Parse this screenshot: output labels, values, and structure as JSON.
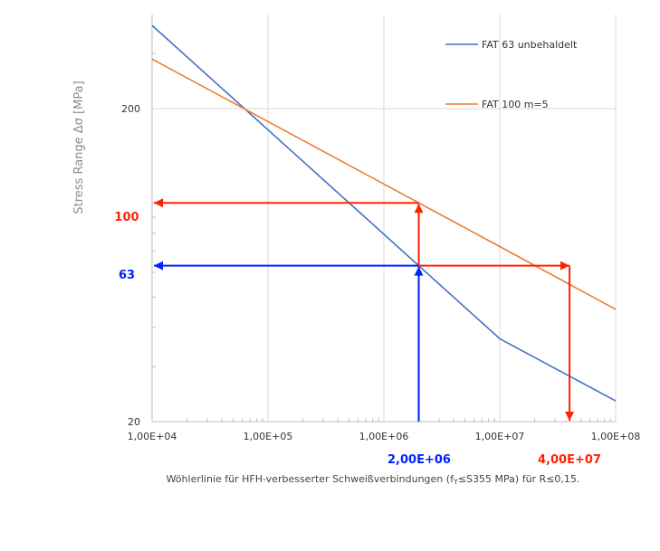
{
  "chart_data": {
    "type": "line",
    "x_scale": "log",
    "y_scale": "log",
    "xlim": [
      10000,
      100000000
    ],
    "ylim": [
      20,
      400
    ],
    "x_ticks": [
      10000,
      100000,
      1000000,
      10000000,
      100000000
    ],
    "x_tick_labels": [
      "1,00E+04",
      "1,00E+05",
      "1,00E+06",
      "1,00E+07",
      "1,00E+08"
    ],
    "y_ticks": [
      20,
      200
    ],
    "y_tick_labels": [
      "20",
      "200"
    ],
    "ylabel": "Stress Range Δσ [MPa]",
    "xlabel": "",
    "grid": "vertical at decades, horizontal at labeled y ticks",
    "legend_position": "top-right",
    "series": [
      {
        "name": "FAT 63 unbehaldelt",
        "color": "#4472C4",
        "x": [
          10000,
          2000000,
          10000000,
          100000000
        ],
        "y": [
          369,
          63,
          36.8,
          23.3
        ]
      },
      {
        "name": "FAT 100 m=5",
        "color": "#ED7D31",
        "x": [
          10000,
          2000000,
          10000000,
          100000000
        ],
        "y": [
          288,
          100,
          72.5,
          45.7
        ]
      }
    ],
    "highlights": {
      "y_values": [
        {
          "label": "100",
          "value": 100,
          "color": "#FF2200"
        },
        {
          "label": "63",
          "value": 63,
          "color": "#0022FF"
        }
      ],
      "x_values": [
        {
          "label": "2,00E+06",
          "value": 2000000,
          "color": "#0022FF"
        },
        {
          "label": "4,00E+07",
          "value": 40000000,
          "color": "#FF2200"
        }
      ]
    },
    "caption": "Wöhlerlinie für HFH-verbesserter Schweißverbindungen (f",
    "caption_sub": "Y",
    "caption_rest": "≤S355 MPa) für R≤0,15."
  }
}
